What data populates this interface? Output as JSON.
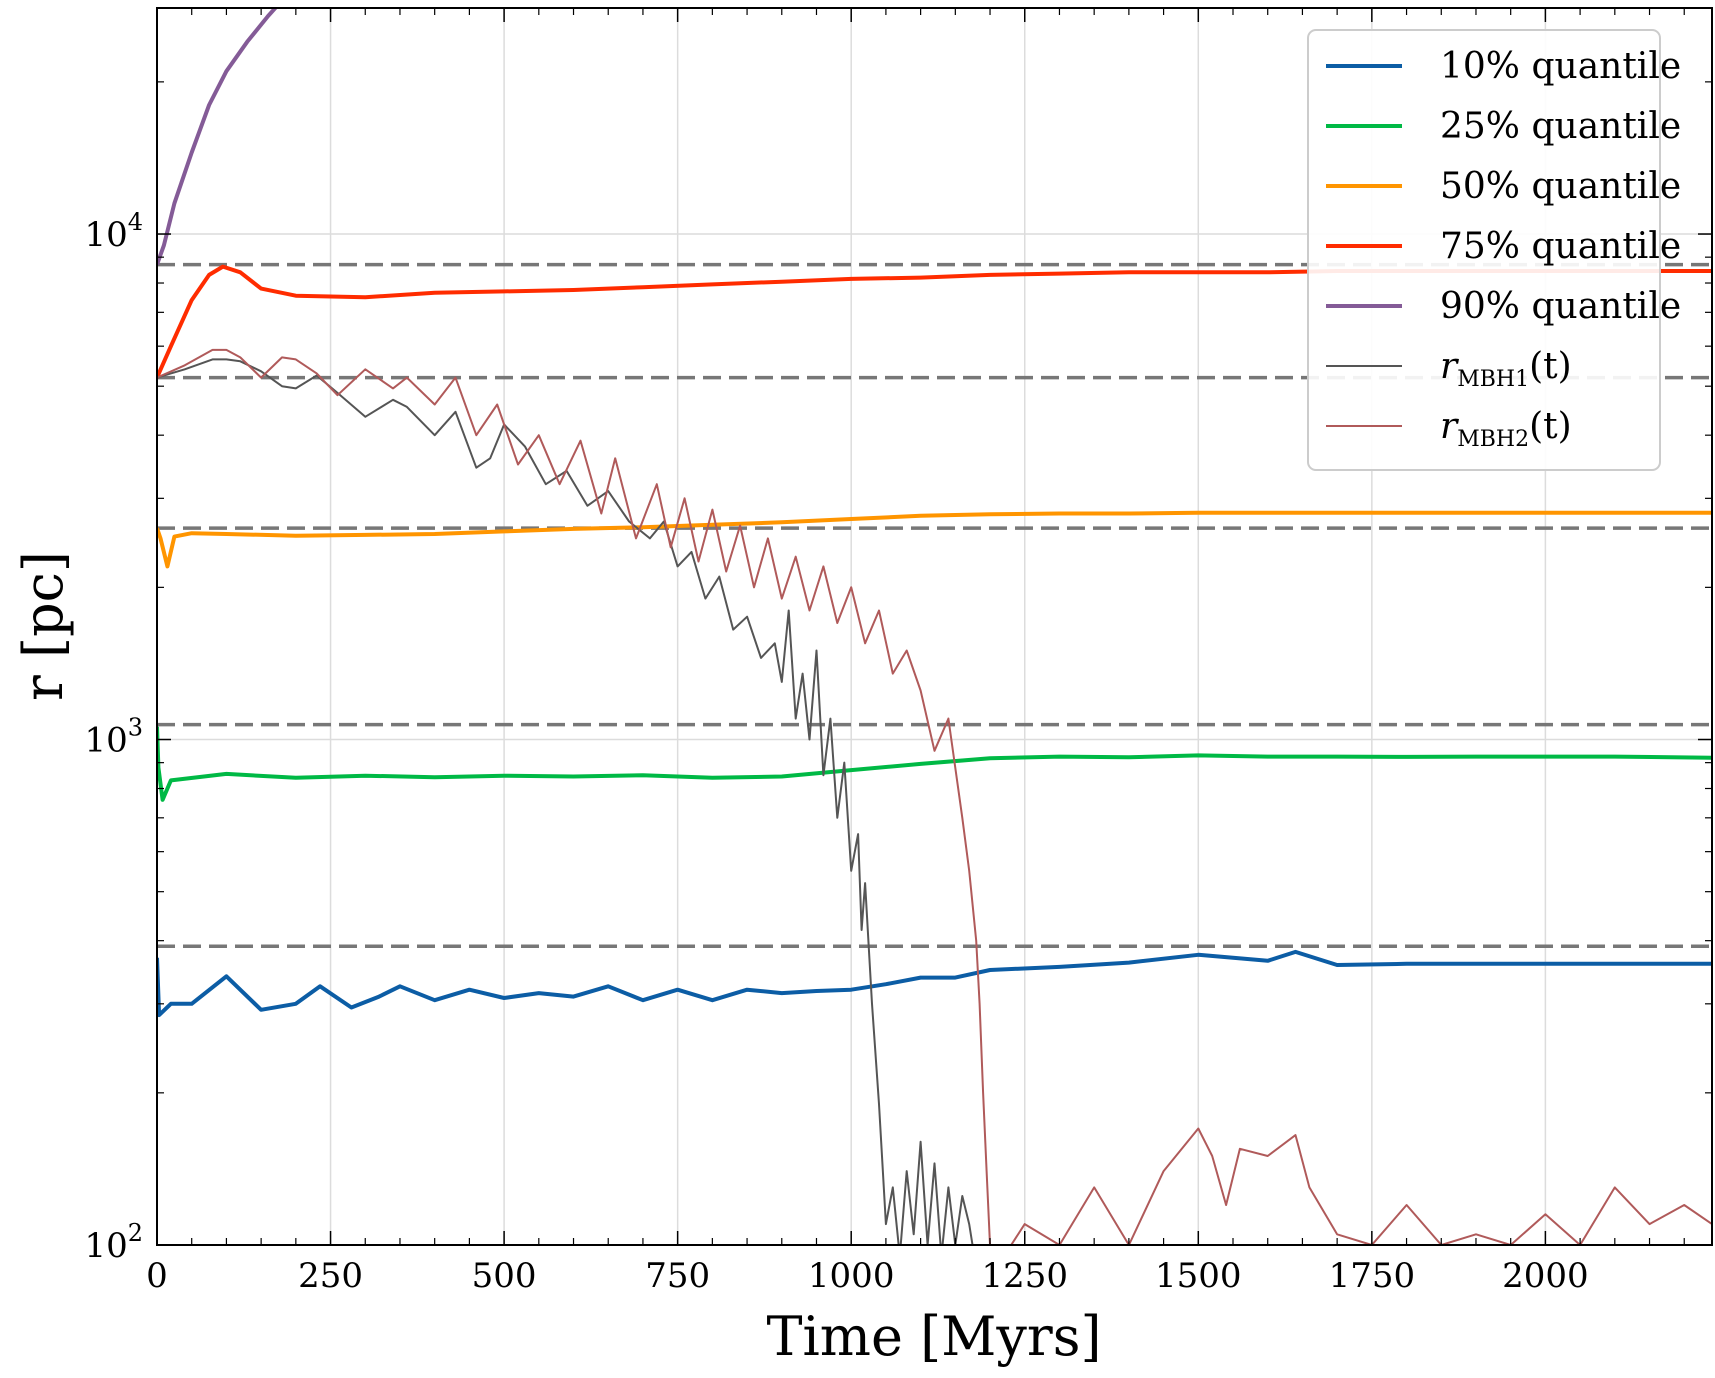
{
  "chart_data": {
    "type": "line",
    "title": "",
    "xlabel": "Time [Myrs]",
    "ylabel": "r [pc]",
    "xlim": [
      0,
      2240
    ],
    "ylim": [
      100,
      28000
    ],
    "yscale": "log",
    "grid": true,
    "legend_position": "top-right",
    "x_ticks": [
      0,
      250,
      500,
      750,
      1000,
      1250,
      1500,
      1750,
      2000
    ],
    "y_ticks": [
      {
        "value": 100,
        "base": "10",
        "exp": "2"
      },
      {
        "value": 1000,
        "base": "10",
        "exp": "3"
      },
      {
        "value": 10000,
        "base": "10",
        "exp": "4"
      }
    ],
    "reference_lines": [
      8700,
      5200,
      2620,
      1070,
      390
    ],
    "series": [
      {
        "name": "10% quantile",
        "color": "#0c5da5",
        "width": 4,
        "x": [
          0,
          3,
          20,
          50,
          100,
          150,
          200,
          235,
          280,
          320,
          350,
          400,
          450,
          500,
          550,
          600,
          650,
          700,
          750,
          800,
          850,
          900,
          950,
          1000,
          1050,
          1100,
          1150,
          1200,
          1300,
          1400,
          1500,
          1600,
          1640,
          1700,
          1800,
          1900,
          2000,
          2100,
          2240
        ],
        "y": [
          370,
          285,
          300,
          300,
          340,
          292,
          300,
          325,
          295,
          310,
          325,
          305,
          320,
          308,
          315,
          310,
          325,
          305,
          320,
          305,
          320,
          315,
          318,
          320,
          328,
          338,
          338,
          350,
          355,
          362,
          375,
          365,
          380,
          358,
          360,
          360,
          360,
          360,
          360
        ]
      },
      {
        "name": "25% quantile",
        "color": "#00b945",
        "width": 4,
        "x": [
          0,
          2,
          8,
          20,
          100,
          200,
          300,
          400,
          500,
          600,
          700,
          800,
          900,
          1000,
          1100,
          1200,
          1300,
          1400,
          1500,
          1600,
          1700,
          1800,
          1900,
          2000,
          2100,
          2240
        ],
        "y": [
          1060,
          880,
          760,
          830,
          855,
          840,
          848,
          842,
          848,
          845,
          850,
          840,
          845,
          870,
          895,
          918,
          925,
          922,
          930,
          925,
          925,
          924,
          925,
          925,
          925,
          920
        ]
      },
      {
        "name": "50% quantile",
        "color": "#ff9500",
        "width": 4,
        "x": [
          0,
          5,
          15,
          25,
          50,
          100,
          200,
          300,
          400,
          500,
          600,
          700,
          800,
          900,
          1000,
          1100,
          1200,
          1300,
          1400,
          1500,
          1600,
          1700,
          1800,
          1900,
          2000,
          2100,
          2240
        ],
        "y": [
          2620,
          2500,
          2200,
          2520,
          2560,
          2550,
          2530,
          2540,
          2550,
          2580,
          2610,
          2630,
          2660,
          2690,
          2730,
          2770,
          2790,
          2800,
          2800,
          2810,
          2810,
          2810,
          2810,
          2810,
          2810,
          2810,
          2810
        ]
      },
      {
        "name": "75% quantile",
        "color": "#ff2c00",
        "width": 4,
        "x": [
          0,
          20,
          50,
          75,
          95,
          120,
          150,
          200,
          300,
          400,
          500,
          600,
          700,
          800,
          900,
          1000,
          1100,
          1200,
          1300,
          1400,
          1500,
          1600,
          1700,
          1800,
          1900,
          2000,
          2100,
          2240
        ],
        "y": [
          5200,
          6000,
          7400,
          8300,
          8620,
          8400,
          7800,
          7550,
          7500,
          7650,
          7700,
          7750,
          7850,
          7950,
          8050,
          8150,
          8200,
          8300,
          8350,
          8400,
          8400,
          8400,
          8450,
          8450,
          8450,
          8450,
          8450,
          8450
        ]
      },
      {
        "name": "90% quantile",
        "color": "#845b97",
        "width": 4,
        "x": [
          0,
          10,
          25,
          50,
          75,
          100,
          130,
          160,
          190,
          220
        ],
        "y": [
          8700,
          9500,
          11500,
          14500,
          18000,
          21000,
          24000,
          27000,
          30000,
          33000
        ]
      },
      {
        "name": "r_MBH1(t)",
        "legend_base": "r",
        "legend_sub": "MBH1",
        "legend_tail": "(t)",
        "color": "#555555",
        "width": 2,
        "x": [
          0,
          40,
          80,
          100,
          120,
          150,
          180,
          200,
          230,
          260,
          300,
          340,
          360,
          400,
          430,
          460,
          480,
          500,
          530,
          560,
          590,
          620,
          650,
          680,
          710,
          730,
          750,
          770,
          790,
          810,
          830,
          850,
          870,
          890,
          900,
          910,
          920,
          930,
          940,
          950,
          960,
          970,
          980,
          990,
          1000,
          1010,
          1015,
          1020,
          1030,
          1040,
          1050,
          1060,
          1070,
          1080,
          1090,
          1100,
          1110,
          1120,
          1130,
          1140,
          1150,
          1160,
          1170,
          1180
        ],
        "y": [
          5200,
          5400,
          5650,
          5650,
          5600,
          5350,
          5000,
          4950,
          5250,
          4850,
          4350,
          4700,
          4550,
          4000,
          4450,
          3450,
          3600,
          4200,
          3800,
          3200,
          3400,
          2900,
          3100,
          2700,
          2500,
          2700,
          2200,
          2350,
          1900,
          2100,
          1650,
          1750,
          1450,
          1550,
          1300,
          1800,
          1100,
          1350,
          1000,
          1500,
          850,
          1100,
          700,
          900,
          550,
          650,
          420,
          520,
          300,
          190,
          110,
          130,
          95,
          140,
          105,
          160,
          100,
          145,
          95,
          130,
          100,
          125,
          110,
          90
        ]
      },
      {
        "name": "r_MBH2(t)",
        "legend_base": "r",
        "legend_sub": "MBH2",
        "legend_tail": "(t)",
        "color": "#b05a5a",
        "width": 2,
        "x": [
          0,
          40,
          80,
          100,
          120,
          150,
          180,
          200,
          230,
          260,
          300,
          340,
          360,
          400,
          430,
          460,
          490,
          520,
          550,
          580,
          610,
          640,
          660,
          690,
          720,
          740,
          760,
          780,
          800,
          820,
          840,
          860,
          880,
          900,
          920,
          940,
          960,
          980,
          1000,
          1020,
          1040,
          1060,
          1080,
          1100,
          1120,
          1140,
          1160,
          1170,
          1180,
          1185,
          1190,
          1195,
          1200,
          1220,
          1250,
          1300,
          1350,
          1400,
          1450,
          1500,
          1520,
          1540,
          1560,
          1600,
          1640,
          1660,
          1700,
          1750,
          1800,
          1850,
          1900,
          1950,
          2000,
          2050,
          2100,
          2150,
          2200,
          2240
        ],
        "y": [
          5200,
          5500,
          5900,
          5900,
          5700,
          5200,
          5700,
          5650,
          5300,
          4800,
          5400,
          4950,
          5200,
          4600,
          5200,
          4000,
          4600,
          3500,
          4000,
          3200,
          3900,
          2800,
          3600,
          2500,
          3200,
          2400,
          3000,
          2250,
          2850,
          2150,
          2650,
          2000,
          2500,
          1900,
          2300,
          1800,
          2200,
          1700,
          2000,
          1550,
          1800,
          1350,
          1500,
          1250,
          950,
          1100,
          700,
          550,
          400,
          300,
          200,
          140,
          100,
          95,
          110,
          100,
          130,
          100,
          140,
          170,
          150,
          120,
          155,
          150,
          165,
          130,
          105,
          100,
          120,
          100,
          105,
          100,
          115,
          100,
          130,
          110,
          120,
          110
        ]
      }
    ]
  }
}
